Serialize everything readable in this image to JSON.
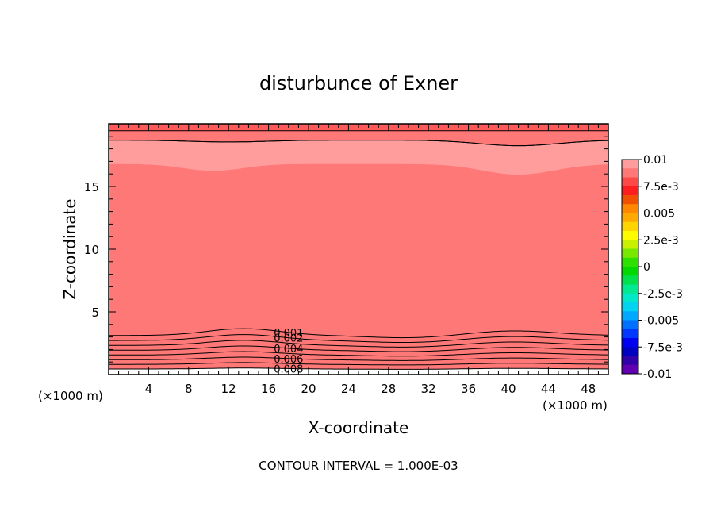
{
  "chart_data": {
    "type": "contour",
    "title": "disturbunce of Exner",
    "xlabel": "X-coordinate",
    "ylabel": "Z-coordinate",
    "x_unit_left": "(×1000 m)",
    "x_unit_right": "(×1000 m)",
    "xlim": [
      0,
      50
    ],
    "ylim": [
      0,
      20
    ],
    "x_ticks": [
      {
        "value": 4,
        "label": "4"
      },
      {
        "value": 8,
        "label": "8"
      },
      {
        "value": 12,
        "label": "12"
      },
      {
        "value": 16,
        "label": "16"
      },
      {
        "value": 20,
        "label": "20"
      },
      {
        "value": 24,
        "label": "24"
      },
      {
        "value": 28,
        "label": "28"
      },
      {
        "value": 32,
        "label": "32"
      },
      {
        "value": 36,
        "label": "36"
      },
      {
        "value": 40,
        "label": "40"
      },
      {
        "value": 44,
        "label": "44"
      },
      {
        "value": 48,
        "label": "48"
      }
    ],
    "y_ticks": [
      {
        "value": 5,
        "label": "5"
      },
      {
        "value": 10,
        "label": "10"
      },
      {
        "value": 15,
        "label": "15"
      }
    ],
    "colorbar": {
      "labels": [
        {
          "value": 0.01,
          "label": "0.01"
        },
        {
          "value": 0.0075,
          "label": "7.5e-3"
        },
        {
          "value": 0.005,
          "label": "0.005"
        },
        {
          "value": 0.0025,
          "label": "2.5e-3"
        },
        {
          "value": 0,
          "label": "0"
        },
        {
          "value": -0.0025,
          "label": "-2.5e-3"
        },
        {
          "value": -0.005,
          "label": "-0.005"
        },
        {
          "value": -0.0075,
          "label": "-7.5e-3"
        },
        {
          "value": -0.01,
          "label": "-0.01"
        }
      ],
      "colors_top_to_bottom": [
        "#ff9c9c",
        "#ff7878",
        "#ff4848",
        "#ff1e1e",
        "#f05000",
        "#ff8800",
        "#ffaa00",
        "#ffd400",
        "#fffc00",
        "#c8f000",
        "#78e800",
        "#2ce000",
        "#00d800",
        "#00e04c",
        "#00e890",
        "#00e8c8",
        "#00d4f0",
        "#00a8ff",
        "#0070ff",
        "#0038ff",
        "#0000f0",
        "#0000c0",
        "#3000a8",
        "#6000b0"
      ]
    },
    "fill_bands": [
      {
        "min": 0.0,
        "color": "#00d800"
      },
      {
        "min": 0.0005,
        "color": "#2ce000"
      },
      {
        "min": 0.001,
        "color": "#78e800"
      },
      {
        "min": 0.0015,
        "color": "#c8f000"
      },
      {
        "min": 0.002,
        "color": "#fffc00"
      },
      {
        "min": 0.003,
        "color": "#ffd400"
      },
      {
        "min": 0.004,
        "color": "#ffaa00"
      },
      {
        "min": 0.005,
        "color": "#ff8800"
      },
      {
        "min": 0.0055,
        "color": "#f05000"
      },
      {
        "min": 0.006,
        "color": "#ff1e1e"
      },
      {
        "min": 0.007,
        "color": "#ff4848"
      },
      {
        "min": 0.008,
        "color": "#ff7878"
      },
      {
        "min": 0.009,
        "color": "#ff9c9c"
      }
    ],
    "contour_levels": [
      0.001,
      0.002,
      0.003,
      0.004,
      0.005,
      0.006,
      0.007,
      0.008,
      0.009,
      0.01
    ],
    "contour_labels": [
      {
        "value": 0.001,
        "label": "0.001"
      },
      {
        "value": 0.002,
        "label": "0.002"
      },
      {
        "value": 0.004,
        "label": "0.004"
      },
      {
        "value": 0.006,
        "label": "0.006"
      },
      {
        "value": 0.008,
        "label": "0.008"
      }
    ],
    "footnote": "CONTOUR INTERVAL = 1.000E-03"
  }
}
